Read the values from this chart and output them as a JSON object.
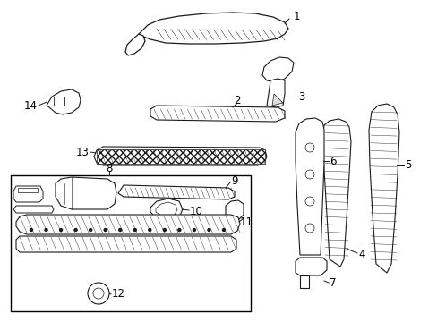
{
  "background_color": "#ffffff",
  "line_color": "#1a1a1a",
  "text_color": "#000000",
  "figsize": [
    4.89,
    3.6
  ],
  "dpi": 100,
  "font_size": 8.5,
  "lw": 0.7
}
